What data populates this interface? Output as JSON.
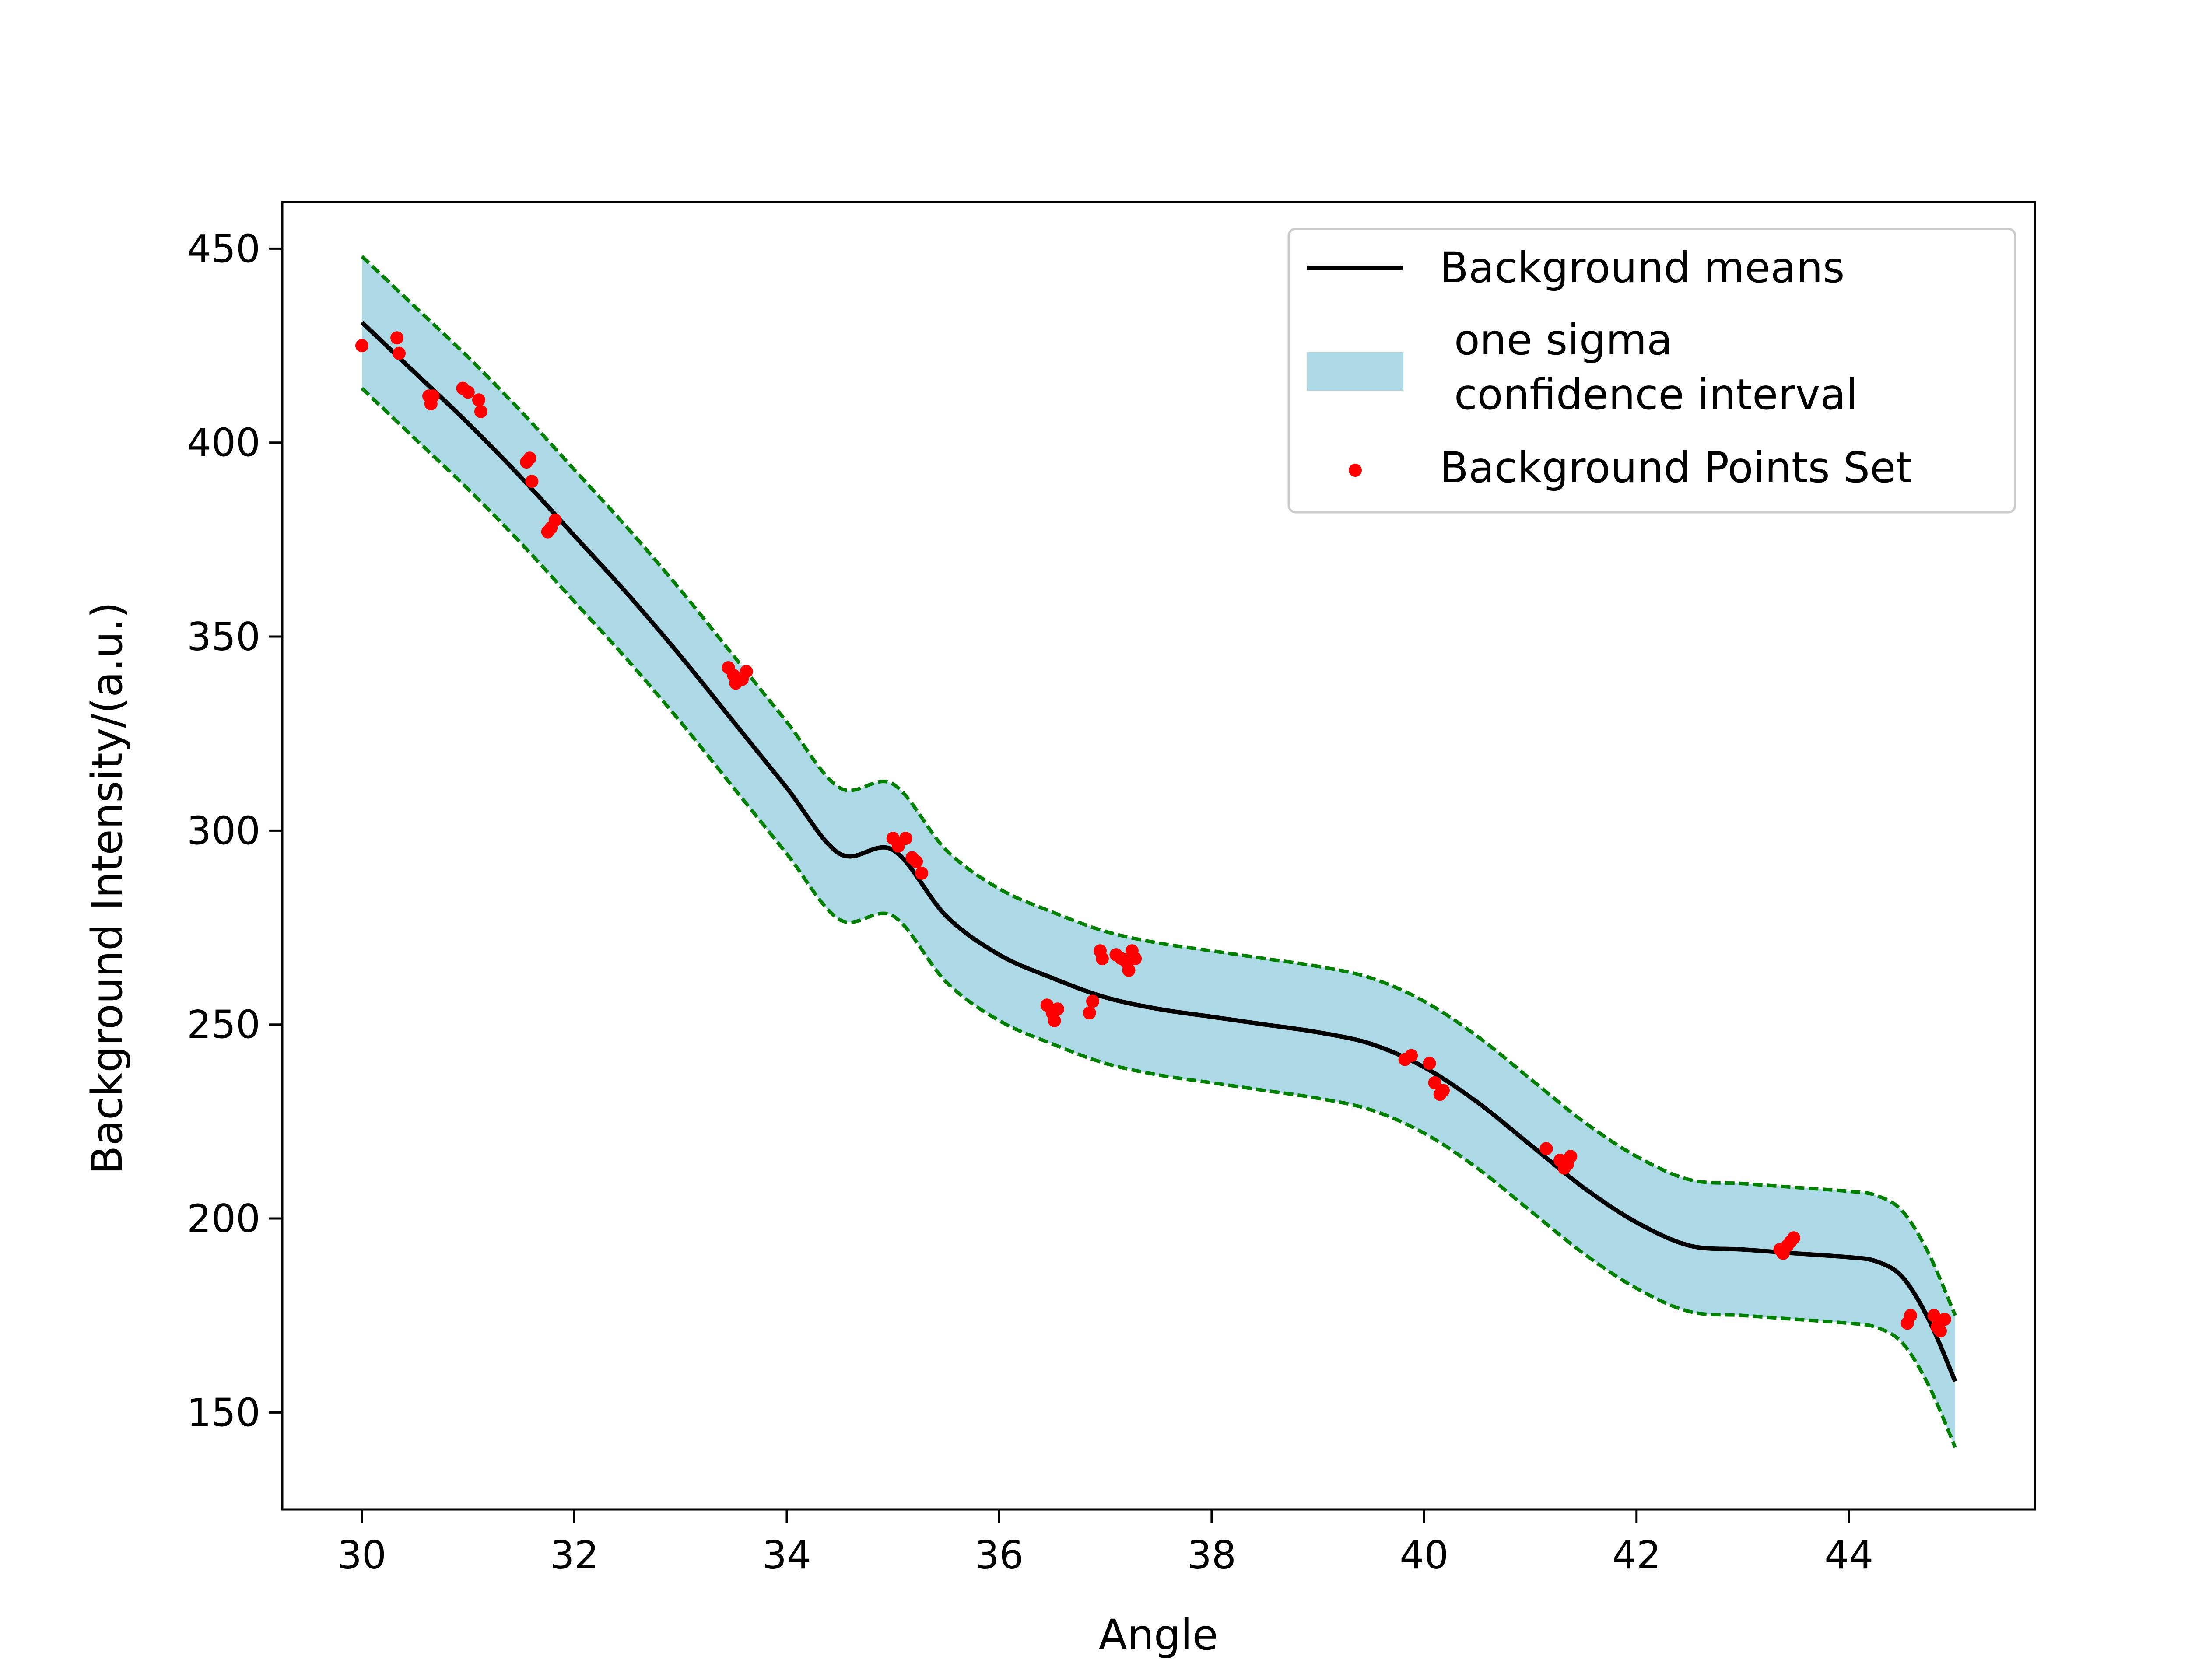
{
  "chart_data": {
    "type": "line",
    "xlabel": "Angle",
    "ylabel": "Background Intensity/(a.u.)",
    "xlim": [
      29.25,
      45.75
    ],
    "ylim": [
      125,
      462
    ],
    "xticks": [
      30,
      32,
      34,
      36,
      38,
      40,
      42,
      44
    ],
    "yticks": [
      150,
      200,
      250,
      300,
      350,
      400,
      450
    ],
    "grid": false,
    "legend_position": "top-right",
    "legend": [
      {
        "label": "Background means",
        "kind": "line"
      },
      {
        "label_lines": [
          "one sigma",
          "confidence interval"
        ],
        "kind": "band"
      },
      {
        "label": "Background Points Set",
        "kind": "scatter"
      }
    ],
    "colors": {
      "mean": "#000000",
      "band": "#add8e6",
      "band_edge": "#008000",
      "points": "#ff0000"
    },
    "series": [
      {
        "name": "Background means",
        "kind": "line",
        "x": [
          30,
          30.5,
          31,
          31.5,
          32,
          32.5,
          33,
          33.5,
          34,
          34.5,
          35,
          35.5,
          36,
          36.5,
          37,
          37.5,
          38,
          38.5,
          39,
          39.5,
          40,
          40.5,
          41,
          41.5,
          42,
          42.5,
          43,
          43.5,
          44,
          44.25,
          44.5,
          44.75,
          45
        ],
        "y": [
          431,
          418,
          405,
          391,
          376,
          361,
          345,
          328,
          311,
          294,
          295,
          278,
          268,
          262,
          257,
          254,
          252,
          250,
          248,
          245,
          239,
          230,
          219,
          208,
          199,
          193,
          192,
          191,
          190,
          189,
          185,
          174,
          158
        ]
      },
      {
        "name": "one sigma confidence interval",
        "kind": "band",
        "x": [
          30,
          30.5,
          31,
          31.5,
          32,
          32.5,
          33,
          33.5,
          34,
          34.5,
          35,
          35.5,
          36,
          36.5,
          37,
          37.5,
          38,
          38.5,
          39,
          39.5,
          40,
          40.5,
          41,
          41.5,
          42,
          42.5,
          43,
          43.5,
          44,
          44.25,
          44.5,
          44.75,
          45
        ],
        "upper": [
          448,
          435,
          422,
          408,
          393,
          378,
          362,
          345,
          328,
          311,
          312,
          295,
          285,
          279,
          274,
          271,
          269,
          267,
          265,
          262,
          256,
          247,
          236,
          225,
          216,
          210,
          209,
          208,
          207,
          206,
          202,
          191,
          175
        ],
        "lower": [
          414,
          401,
          388,
          374,
          359,
          344,
          328,
          311,
          294,
          277,
          278,
          261,
          251,
          245,
          240,
          237,
          235,
          233,
          231,
          228,
          222,
          213,
          202,
          191,
          182,
          176,
          175,
          174,
          173,
          172,
          168,
          157,
          141
        ]
      },
      {
        "name": "Background Points Set",
        "kind": "scatter",
        "x": [
          30.0,
          30.33,
          30.35,
          30.63,
          30.65,
          30.67,
          30.95,
          31.0,
          31.1,
          31.12,
          31.55,
          31.58,
          31.6,
          31.75,
          31.78,
          31.82,
          33.45,
          33.5,
          33.52,
          33.58,
          33.62,
          35.0,
          35.05,
          35.12,
          35.18,
          35.22,
          35.27,
          36.45,
          36.5,
          36.52,
          36.55,
          36.85,
          36.88,
          36.95,
          36.97,
          37.1,
          37.15,
          37.2,
          37.22,
          37.25,
          37.28,
          39.82,
          39.88,
          40.05,
          40.1,
          40.15,
          40.18,
          41.15,
          41.28,
          41.32,
          41.35,
          41.38,
          43.35,
          43.38,
          43.42,
          43.45,
          43.48,
          44.55,
          44.58,
          44.8,
          44.83,
          44.86,
          44.9
        ],
        "y": [
          425,
          427,
          423,
          412,
          410,
          412,
          414,
          413,
          411,
          408,
          395,
          396,
          390,
          377,
          378,
          380,
          342,
          340,
          338,
          339,
          341,
          298,
          296,
          298,
          293,
          292,
          289,
          255,
          253,
          251,
          254,
          253,
          256,
          269,
          267,
          268,
          267,
          266,
          264,
          269,
          267,
          241,
          242,
          240,
          235,
          232,
          233,
          218,
          215,
          213,
          214,
          216,
          192,
          191,
          193,
          194,
          195,
          173,
          175,
          175,
          172,
          171,
          174
        ]
      }
    ]
  }
}
